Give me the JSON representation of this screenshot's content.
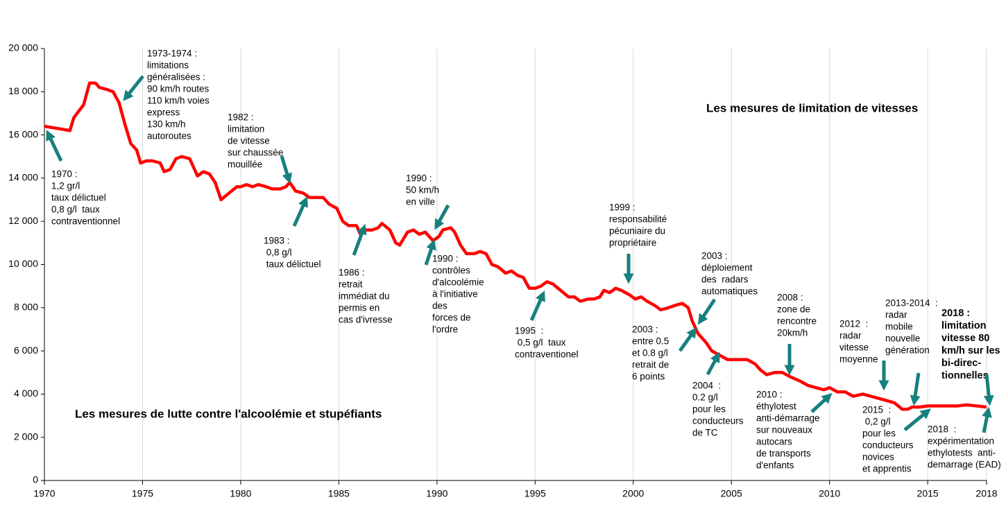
{
  "chart_data": {
    "type": "line",
    "color": "#ff0000",
    "grid": true,
    "xlim": [
      1970,
      2018
    ],
    "xticks": [
      1970,
      1975,
      1980,
      1985,
      1990,
      1995,
      2000,
      2005,
      2010,
      2015,
      2018
    ],
    "ylim": [
      0,
      20000
    ],
    "yticks": [
      0,
      {
        "value": 2000,
        "label": "2 000"
      },
      {
        "value": 4000,
        "label": "4 000"
      },
      {
        "value": 6000,
        "label": "6 000"
      },
      {
        "value": 8000,
        "label": "8 000"
      },
      {
        "value": 10000,
        "label": "10 000"
      },
      {
        "value": 12000,
        "label": "12 000"
      },
      {
        "value": 14000,
        "label": "14 000"
      },
      {
        "value": 16000,
        "label": "16 000"
      },
      {
        "value": 18000,
        "label": "18 000"
      },
      {
        "value": 20000,
        "label": "20 000"
      }
    ],
    "x": [
      1970,
      1971.0,
      1971.3,
      1971.5,
      1972,
      1972.3,
      1972.6,
      1972.8,
      1973.2,
      1973.5,
      1973.8,
      1974.1,
      1974.4,
      1974.7,
      1974.9,
      1975.2,
      1975.5,
      1975.9,
      1976.1,
      1976.4,
      1976.7,
      1977.0,
      1977.4,
      1977.8,
      1978.1,
      1978.4,
      1978.7,
      1979.0,
      1979.4,
      1979.8,
      1980.0,
      1980.3,
      1980.6,
      1980.9,
      1981.3,
      1981.6,
      1982.0,
      1982.3,
      1982.5,
      1982.8,
      1983.2,
      1983.5,
      1983.8,
      1984.2,
      1984.5,
      1984.9,
      1985.2,
      1985.5,
      1985.9,
      1986.1,
      1986.3,
      1986.7,
      1987.0,
      1987.2,
      1987.6,
      1987.9,
      1988.1,
      1988.5,
      1988.8,
      1989.1,
      1989.4,
      1989.8,
      1990.1,
      1990.3,
      1990.7,
      1990.9,
      1991.2,
      1991.5,
      1991.9,
      1992.2,
      1992.5,
      1992.8,
      1993.1,
      1993.5,
      1993.8,
      1994.1,
      1994.4,
      1994.7,
      1995.0,
      1995.3,
      1995.6,
      1995.9,
      1996.3,
      1996.7,
      1997.0,
      1997.3,
      1997.7,
      1998.0,
      1998.3,
      1998.5,
      1998.8,
      1999.1,
      1999.4,
      1999.8,
      2000.1,
      2000.4,
      2000.7,
      2001.1,
      2001.4,
      2001.8,
      2002.1,
      2002.5,
      2002.8,
      2003.0,
      2003.3,
      2003.7,
      2004.0,
      2004.4,
      2004.8,
      2005.2,
      2005.5,
      2005.8,
      2006.2,
      2006.5,
      2006.8,
      2007.2,
      2007.6,
      2008.0,
      2008.5,
      2008.9,
      2009.3,
      2009.7,
      2010.0,
      2010.4,
      2010.8,
      2011.2,
      2011.7,
      2012.1,
      2012.5,
      2012.9,
      2013.3,
      2013.7,
      2014.0,
      2014.2,
      2014.6,
      2015.0,
      2015.5,
      2016.0,
      2016.5,
      2017.0,
      2017.5,
      2018.0
    ],
    "values": [
      16400,
      16250,
      16200,
      16800,
      17400,
      18400,
      18400,
      18200,
      18100,
      18000,
      17500,
      16500,
      15600,
      15300,
      14700,
      14800,
      14800,
      14700,
      14300,
      14400,
      14900,
      15000,
      14900,
      14100,
      14300,
      14200,
      13800,
      13000,
      13300,
      13600,
      13600,
      13700,
      13600,
      13700,
      13600,
      13500,
      13500,
      13600,
      13800,
      13400,
      13300,
      13100,
      13100,
      13100,
      12800,
      12600,
      12000,
      11800,
      11800,
      11400,
      11600,
      11600,
      11700,
      11900,
      11600,
      11000,
      10900,
      11500,
      11600,
      11400,
      11500,
      11100,
      11300,
      11600,
      11700,
      11500,
      10900,
      10500,
      10500,
      10600,
      10500,
      10000,
      9900,
      9600,
      9700,
      9500,
      9400,
      8900,
      8900,
      9000,
      9200,
      9100,
      8800,
      8500,
      8500,
      8300,
      8400,
      8400,
      8500,
      8800,
      8700,
      8900,
      8800,
      8600,
      8400,
      8500,
      8300,
      8100,
      7900,
      8000,
      8100,
      8200,
      8000,
      7400,
      6800,
      6400,
      6000,
      5800,
      5600,
      5600,
      5600,
      5600,
      5400,
      5100,
      4900,
      5000,
      5000,
      4800,
      4600,
      4400,
      4300,
      4200,
      4300,
      4100,
      4100,
      3900,
      4000,
      3900,
      3800,
      3700,
      3600,
      3300,
      3300,
      3400,
      3400,
      3450,
      3450,
      3450,
      3450,
      3500,
      3450,
      3400
    ],
    "headings": [
      "Les mesures de limitation de vitesses",
      "Les mesures de lutte contre l'alcoolémie et stupéfiants"
    ],
    "annotations": [
      {
        "lines": [
          "1973-1974 :",
          "limitations",
          "généralisées :",
          "90 km/h routes",
          "110 km/h voies",
          "express",
          "130 km/h",
          "autoroutes"
        ]
      },
      {
        "lines": [
          "1970 :",
          "1,2 gr/l",
          "taux délictuel",
          "0,8 g/l  taux",
          "contraventionnel"
        ]
      },
      {
        "lines": [
          "1982 :",
          "limitation",
          "de vitesse",
          "sur chaussée",
          "mouillée"
        ]
      },
      {
        "lines": [
          "1983 :",
          " 0,8 g/l",
          " taux délictuel"
        ]
      },
      {
        "lines": [
          "1986 :",
          "retrait",
          "immédiat du",
          "permis en",
          "cas d'ivresse"
        ]
      },
      {
        "lines": [
          "1990 :",
          "50 km/h",
          "en ville"
        ]
      },
      {
        "lines": [
          "1990 :",
          "contrôles",
          "d'alcoolémie",
          "à l'initiative",
          "des",
          "forces de",
          "l'ordre"
        ]
      },
      {
        "lines": [
          "1995  :",
          " 0,5 g/l  taux",
          "contraventionel"
        ]
      },
      {
        "lines": [
          "1999 :",
          "responsabilité",
          "pécuniaire du",
          "propriétaire"
        ]
      },
      {
        "lines": [
          "2003 :",
          "déploiement",
          "des  radars",
          "automatiques"
        ]
      },
      {
        "lines": [
          "2003 :",
          "entre 0.5",
          "et 0.8 g/l",
          "retrait de",
          "6 points"
        ]
      },
      {
        "lines": [
          "2004  :",
          "0.2 g/l",
          "pour les",
          "conducteurs",
          "de TC"
        ]
      },
      {
        "lines": [
          "2008 :",
          "zone de",
          "rencontre",
          "20km/h"
        ]
      },
      {
        "lines": [
          "2010 :",
          "éthylotest",
          "anti-démarrage",
          "sur nouveaux",
          "autocars",
          "de transports",
          "d'enfants"
        ]
      },
      {
        "lines": [
          "2012  :",
          "radar",
          "vitesse",
          "moyenne"
        ]
      },
      {
        "lines": [
          "2013-2014  :",
          "radar",
          "mobile",
          "nouvelle",
          "génération"
        ]
      },
      {
        "lines": [
          "2015  :",
          " 0,2 g/l",
          "pour les",
          "conducteurs",
          "novices",
          "et apprentis"
        ]
      },
      {
        "lines": [
          "2018 :",
          "limitation",
          "vitesse 80",
          "km/h sur les",
          "bi-direc-",
          "tionnelles"
        ]
      },
      {
        "lines": [
          "2018  :",
          "expérimentation",
          "ethylotests  anti-",
          "demarrage (EAD)"
        ]
      }
    ]
  }
}
